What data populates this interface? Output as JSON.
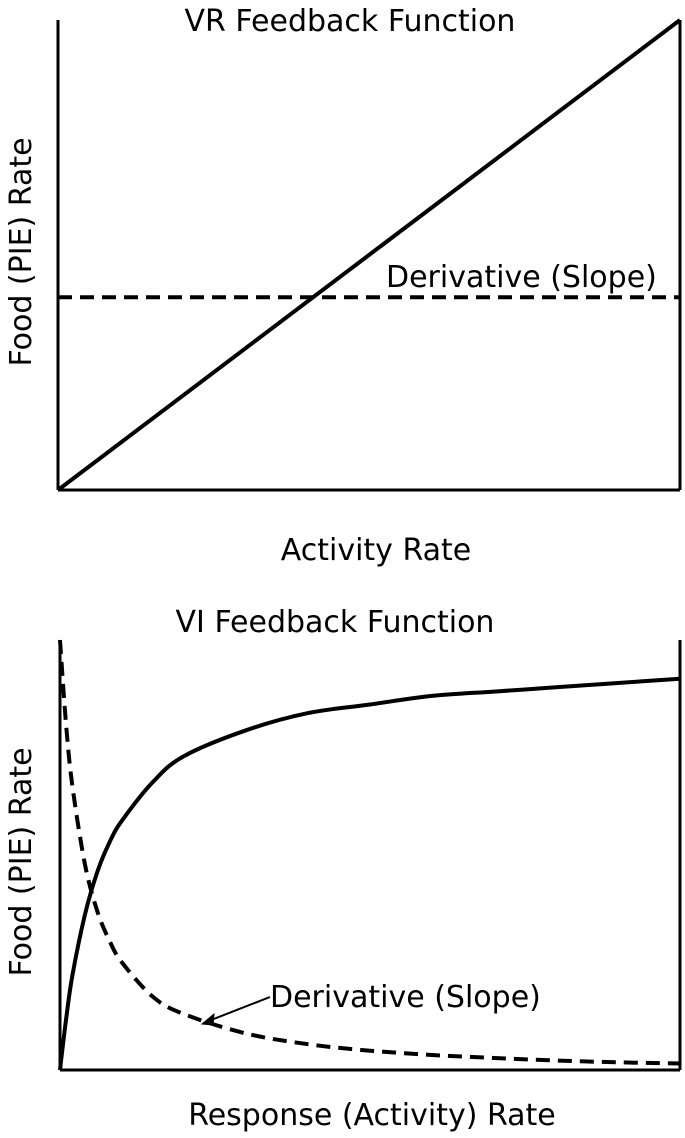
{
  "chart_data": [
    {
      "type": "line",
      "title": "VR Feedback Function",
      "xlabel": "Activity Rate",
      "ylabel": "Food (PIE) Rate",
      "xlim": [
        0,
        1
      ],
      "ylim": [
        0,
        1
      ],
      "grid": false,
      "series": [
        {
          "style": "solid",
          "x": [
            0,
            1
          ],
          "y": [
            0,
            1
          ]
        },
        {
          "name": "Derivative (Slope)",
          "style": "dashed",
          "x": [
            0,
            1
          ],
          "y": [
            0.41,
            0.41
          ]
        }
      ],
      "annotations": [
        {
          "text": "Derivative (Slope)",
          "target_series": 1
        }
      ]
    },
    {
      "type": "line",
      "title": "VI Feedback Function",
      "xlabel": "Response (Activity) Rate",
      "ylabel": "Food (PIE) Rate",
      "xlim": [
        0,
        1
      ],
      "ylim": [
        0,
        1
      ],
      "grid": false,
      "series": [
        {
          "style": "solid",
          "x": [
            0,
            0.01,
            0.02,
            0.04,
            0.06,
            0.08,
            0.1,
            0.15,
            0.2,
            0.3,
            0.4,
            0.5,
            0.6,
            0.7,
            0.8,
            0.9,
            1.0
          ],
          "y": [
            0,
            0.12,
            0.22,
            0.36,
            0.46,
            0.53,
            0.58,
            0.67,
            0.73,
            0.79,
            0.83,
            0.85,
            0.87,
            0.88,
            0.89,
            0.9,
            0.91
          ]
        },
        {
          "name": "Derivative (Slope)",
          "style": "dashed",
          "x": [
            0,
            0.01,
            0.02,
            0.04,
            0.06,
            0.08,
            0.1,
            0.15,
            0.2,
            0.3,
            0.4,
            0.5,
            0.6,
            0.7,
            0.8,
            0.9,
            1.0
          ],
          "y": [
            1.0,
            0.8,
            0.66,
            0.48,
            0.37,
            0.3,
            0.25,
            0.17,
            0.13,
            0.085,
            0.06,
            0.045,
            0.035,
            0.028,
            0.022,
            0.018,
            0.015
          ]
        }
      ],
      "annotations": [
        {
          "text": "Derivative (Slope)",
          "target_series": 1,
          "arrow_to_x": 0.23
        }
      ]
    }
  ]
}
